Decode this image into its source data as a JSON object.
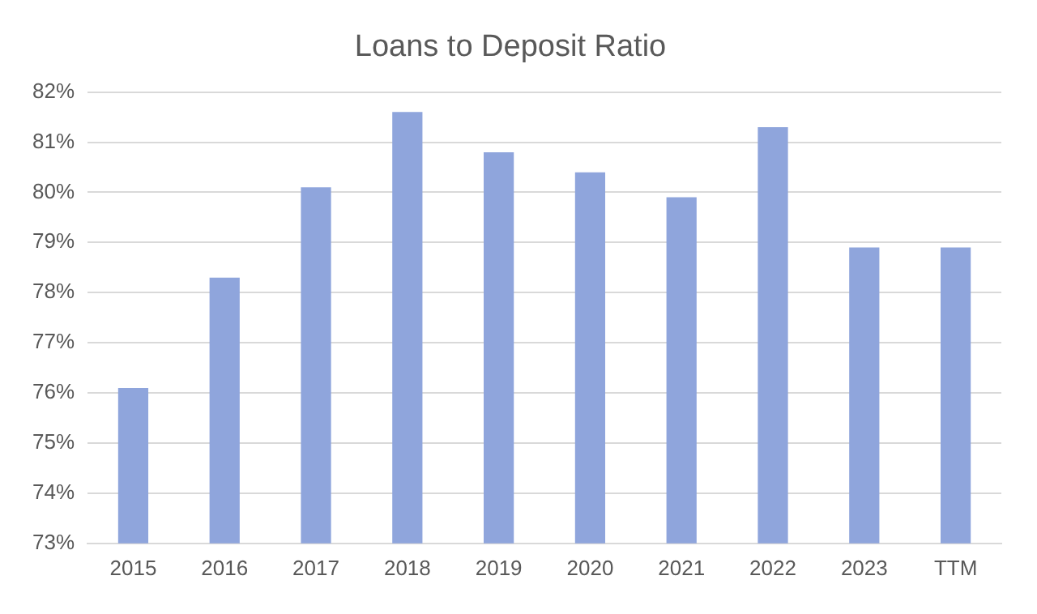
{
  "chart_data": {
    "type": "bar",
    "title": "Loans to Deposit Ratio",
    "categories": [
      "2015",
      "2016",
      "2017",
      "2018",
      "2019",
      "2020",
      "2021",
      "2022",
      "2023",
      "TTM"
    ],
    "values": [
      76.1,
      78.3,
      80.1,
      81.6,
      80.8,
      80.4,
      79.9,
      81.3,
      78.9,
      78.9
    ],
    "color": "#8fa5dc",
    "ylim": [
      73,
      82
    ],
    "yticks": [
      {
        "value": 73,
        "label": "73%"
      },
      {
        "value": 74,
        "label": "74%"
      },
      {
        "value": 75,
        "label": "75%"
      },
      {
        "value": 76,
        "label": "76%"
      },
      {
        "value": 77,
        "label": "77%"
      },
      {
        "value": 78,
        "label": "78%"
      },
      {
        "value": 79,
        "label": "79%"
      },
      {
        "value": 80,
        "label": "80%"
      },
      {
        "value": 81,
        "label": "81%"
      },
      {
        "value": 82,
        "label": "82%"
      }
    ],
    "grid": "y",
    "legend": false
  }
}
